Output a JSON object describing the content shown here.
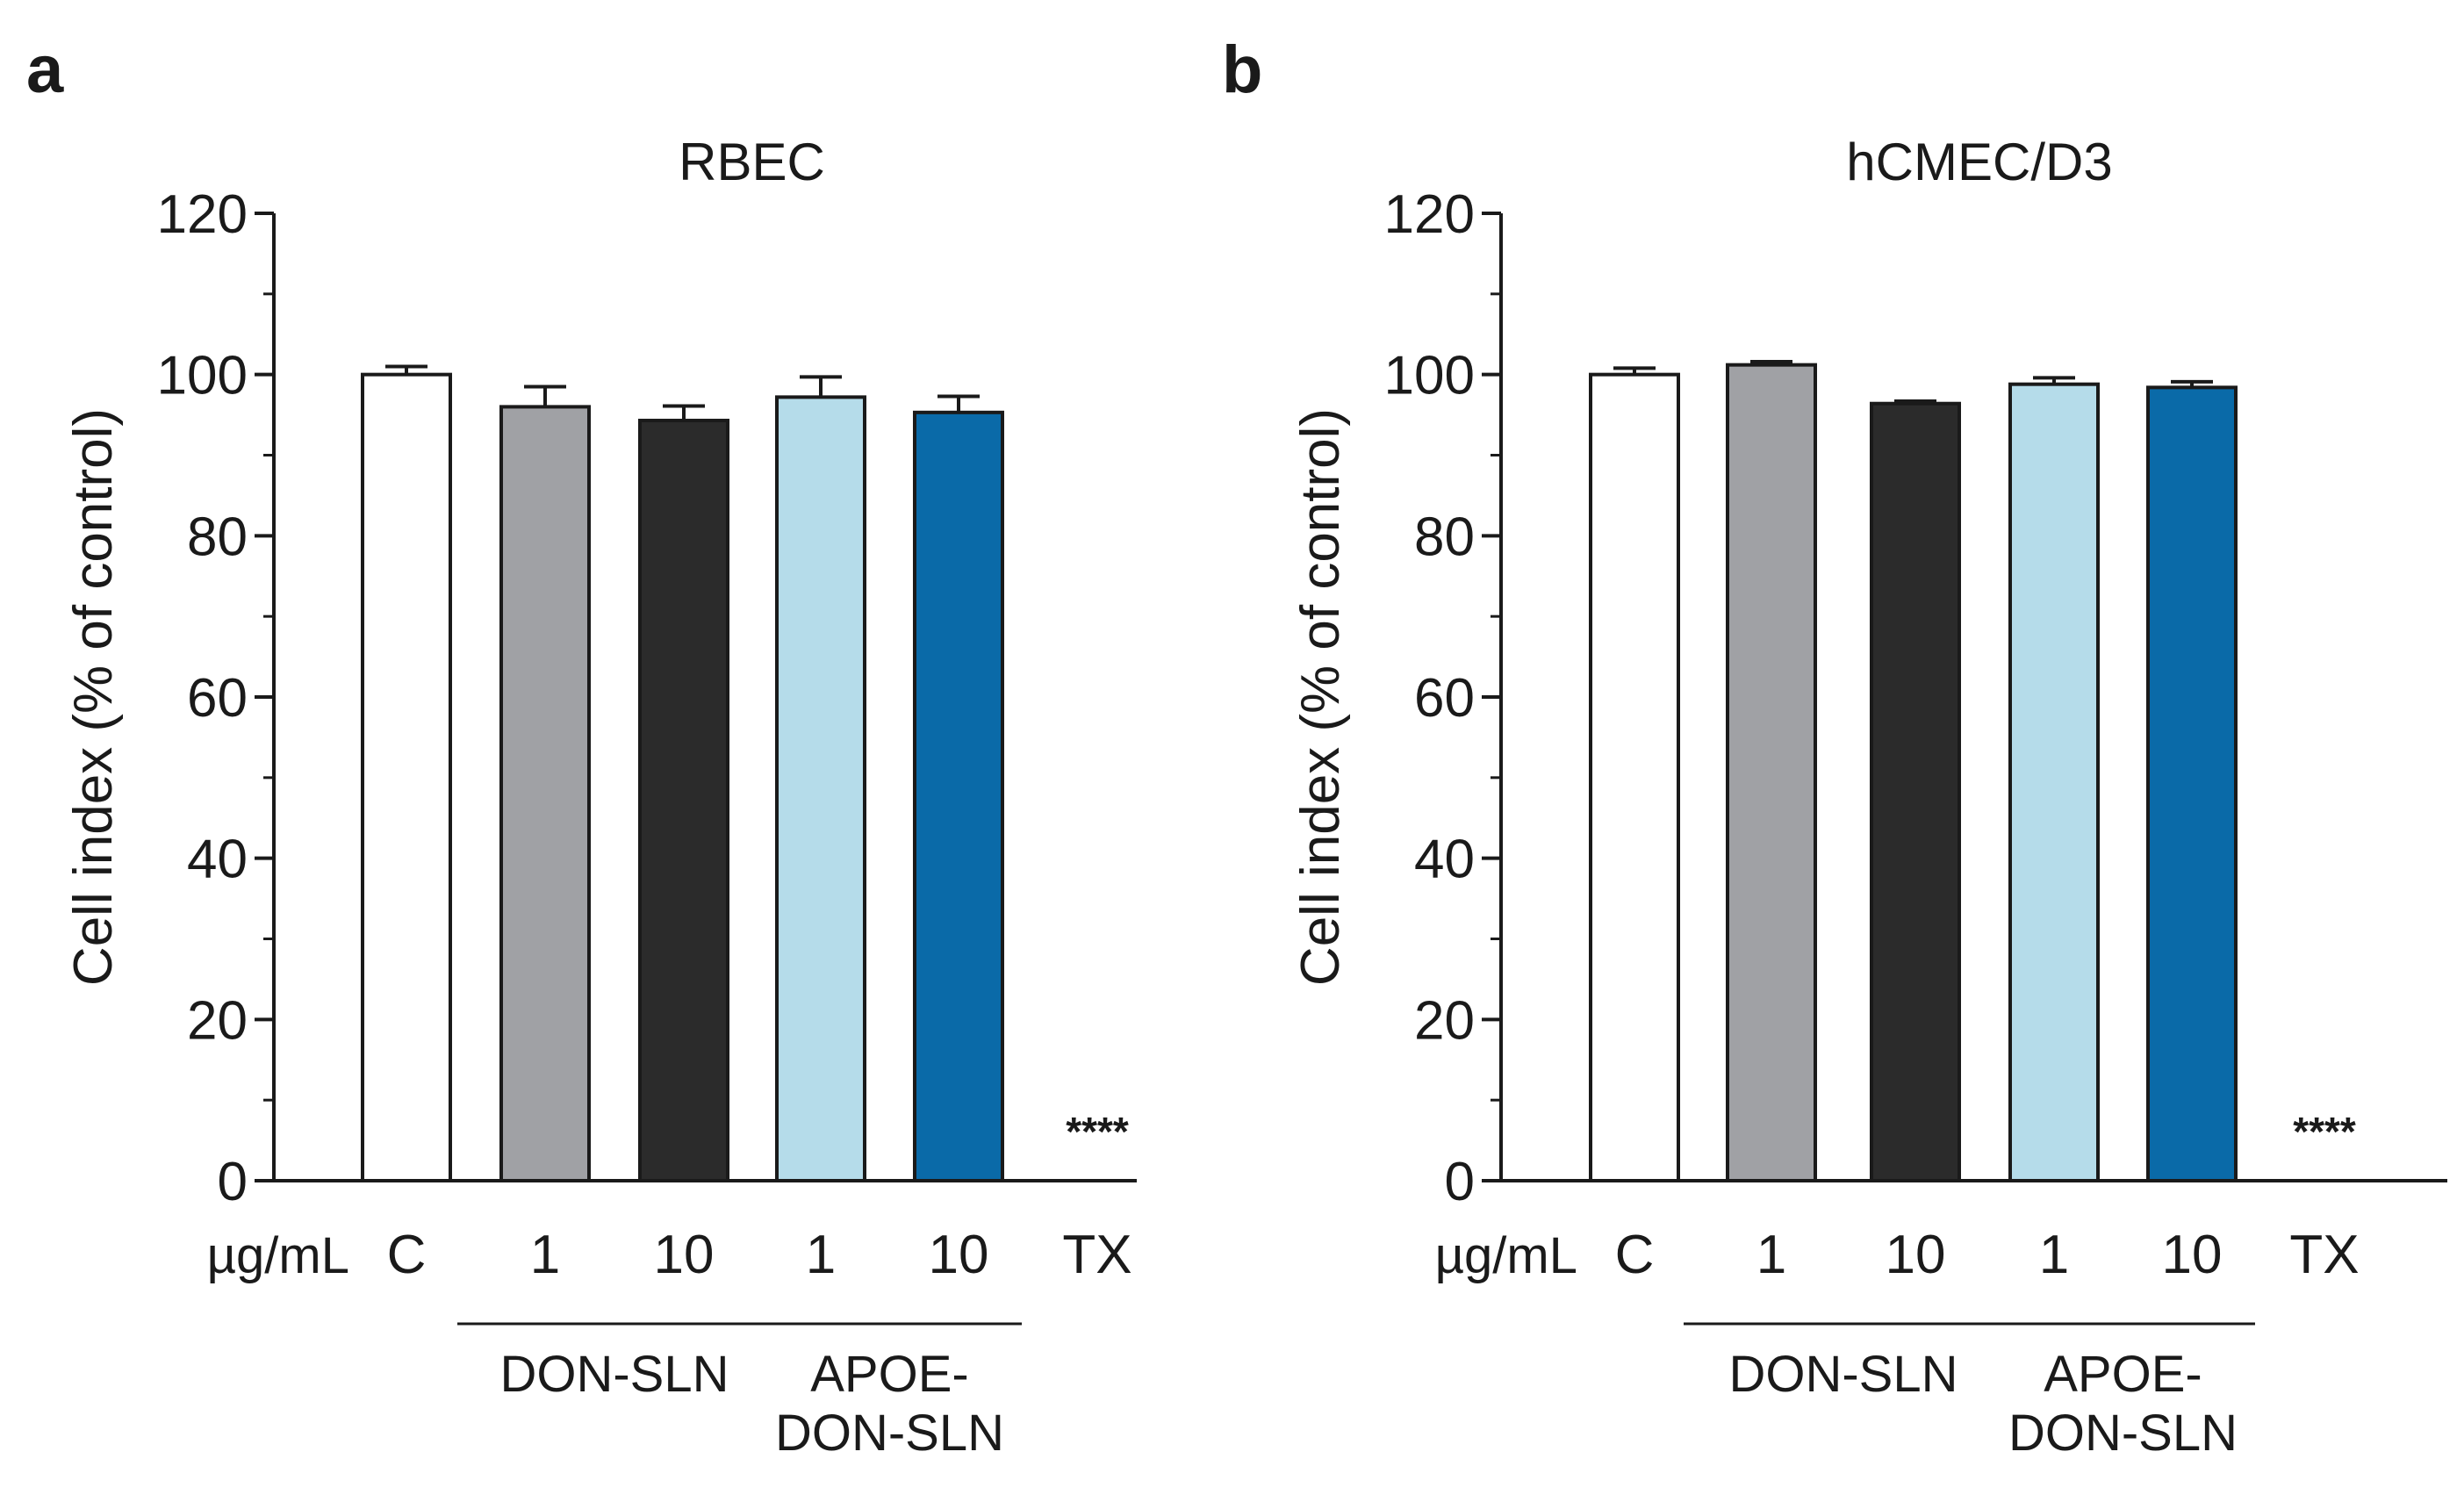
{
  "unit_label": "µg/mL",
  "chart_data": [
    {
      "panel": "a",
      "type": "bar",
      "title": "RBEC",
      "xlabel": "",
      "ylabel": "Cell index (% of control)",
      "ylim": [
        0,
        120
      ],
      "yticks": [
        0,
        20,
        40,
        60,
        80,
        100,
        120
      ],
      "categories": [
        "C",
        "1",
        "10",
        "1",
        "10",
        "TX"
      ],
      "values": [
        100,
        96,
        94.3,
        97.2,
        95.3,
        0
      ],
      "errors": [
        1.0,
        2.5,
        1.8,
        2.5,
        2.0,
        0
      ],
      "colors": [
        "#ffffff",
        "#a0a1a5",
        "#2b2b2b",
        "#b5dcea",
        "#0a6aa8",
        "#ffffff"
      ],
      "groups": [
        {
          "label_lines": [
            "DON-SLN"
          ],
          "from": 1,
          "to": 2
        },
        {
          "label_lines": [
            "APOE-",
            "DON-SLN"
          ],
          "from": 3,
          "to": 4
        }
      ],
      "annotations": [
        {
          "category_index": 5,
          "text": "****"
        }
      ]
    },
    {
      "panel": "b",
      "type": "bar",
      "title": "hCMEC/D3",
      "xlabel": "",
      "ylabel": "Cell index (% of control)",
      "ylim": [
        0,
        120
      ],
      "yticks": [
        0,
        20,
        40,
        60,
        80,
        100,
        120
      ],
      "categories": [
        "C",
        "1",
        "10",
        "1",
        "10",
        "TX"
      ],
      "values": [
        100,
        101.2,
        96.4,
        98.8,
        98.4,
        0
      ],
      "errors": [
        0.8,
        0.4,
        0.3,
        0.8,
        0.7,
        0
      ],
      "colors": [
        "#ffffff",
        "#a0a1a5",
        "#2b2b2b",
        "#b5dcea",
        "#0a6aa8",
        "#ffffff"
      ],
      "groups": [
        {
          "label_lines": [
            "DON-SLN"
          ],
          "from": 1,
          "to": 2
        },
        {
          "label_lines": [
            "APOE-",
            "DON-SLN"
          ],
          "from": 3,
          "to": 4
        }
      ],
      "annotations": [
        {
          "category_index": 5,
          "text": "****"
        }
      ]
    }
  ]
}
